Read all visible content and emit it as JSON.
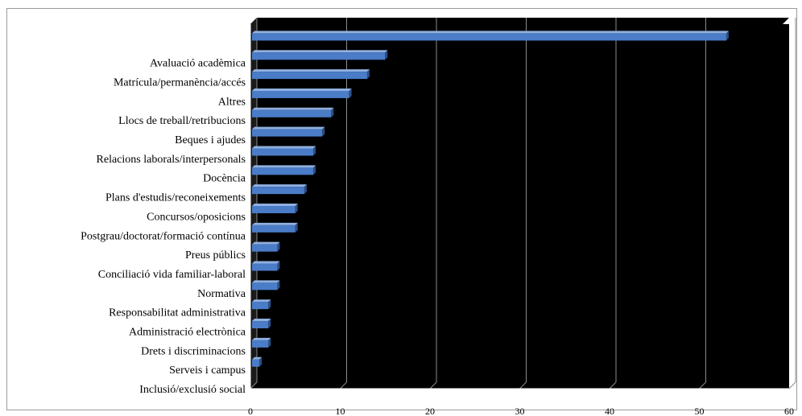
{
  "chart_data": {
    "type": "bar",
    "orientation": "horizontal",
    "style": "3d",
    "categories": [
      "",
      "Avaluació acadèmica",
      "Matrícula/permanència/accés",
      "Altres",
      "Llocs de treball/retribucions",
      "Beques i ajudes",
      "Relacions laborals/interpersonals",
      "Docència",
      "Plans d'estudis/reconeixements",
      "Concursos/oposicions",
      "Postgrau/doctorat/formació contínua",
      "Preus públics",
      "Conciliació vida familiar-laboral",
      "Normativa",
      "Responsabilitat administrativa",
      "Administració electrònica",
      "Drets i discriminacions",
      "Serveis i campus",
      "Inclusió/exclusió social"
    ],
    "values": [
      53,
      15,
      13,
      11,
      9,
      8,
      7,
      7,
      6,
      5,
      5,
      3,
      3,
      3,
      2,
      2,
      2,
      1,
      0
    ],
    "xlim": [
      0,
      60
    ],
    "xticks": [
      "0",
      "10",
      "20",
      "30",
      "40",
      "50",
      "60"
    ],
    "title": "",
    "xlabel": "",
    "ylabel": "",
    "grid": true,
    "legend": "none",
    "colors": {
      "plot_background": "#000000",
      "bar_face": "#4a7cc7",
      "bar_top": "#8fb0e0",
      "bar_side": "#2c4f86",
      "gridline": "#8c8c8c",
      "frame": "#9a9a9a"
    }
  }
}
